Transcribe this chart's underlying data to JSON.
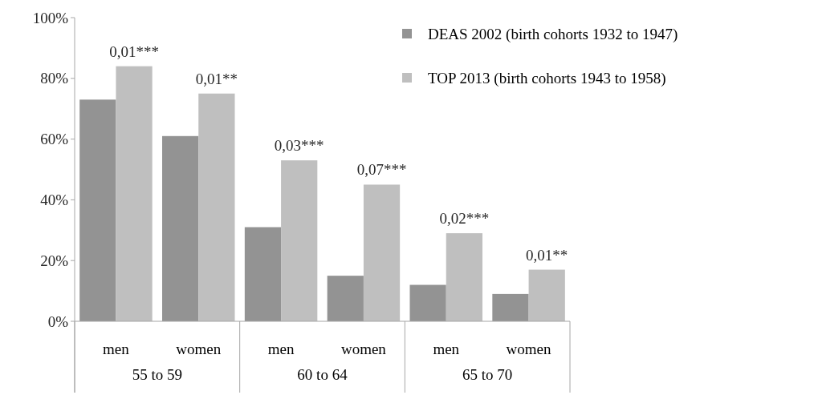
{
  "chart_data": {
    "type": "bar",
    "categories": [
      "men",
      "women",
      "men",
      "women",
      "men",
      "women"
    ],
    "series": [
      {
        "name": "DEAS 2002 (birth cohorts 1932 to 1947)",
        "color": "#939393",
        "values": [
          73,
          61,
          31,
          15,
          12,
          9
        ]
      },
      {
        "name": "TOP 2013 (birth cohorts 1943 to 1958)",
        "color": "#bfbfbf",
        "values": [
          84,
          75,
          53,
          45,
          29,
          17
        ]
      }
    ],
    "annotations": [
      "55 to 59",
      "60 to 64",
      "65 to 70",
      {
        "text": "0,01***",
        "y": 84
      },
      {
        "text": "0,01**",
        "y": 75
      },
      {
        "text": "0,03***",
        "y": 53
      },
      {
        "text": "0,07***",
        "y": 45
      },
      {
        "text": "0,02***",
        "y": 29
      },
      {
        "text": "0,01**",
        "y": 17
      }
    ],
    "ylim": [
      0,
      100
    ],
    "yticks": [
      {
        "value": 0,
        "label": "0%"
      },
      {
        "value": 20,
        "label": "20%"
      },
      {
        "value": 40,
        "label": "40%"
      },
      {
        "value": 60,
        "label": "60%"
      },
      {
        "value": 80,
        "label": "80%"
      },
      {
        "value": 100,
        "label": "100%"
      }
    ],
    "grid": false,
    "legend": "top right"
  }
}
